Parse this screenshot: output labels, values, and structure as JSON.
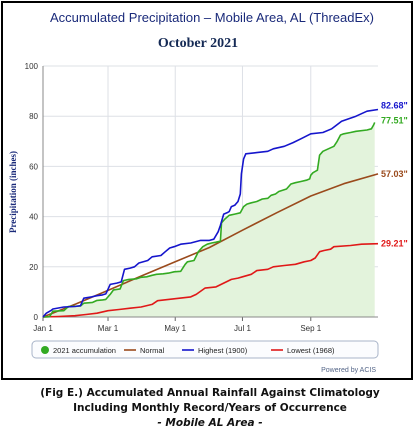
{
  "chart_data": {
    "type": "line",
    "title": "Accumulated Precipitation – Mobile Area, AL (ThreadEx)",
    "subtitle": "October 2021",
    "ylabel": "Precipitation (inches)",
    "ylim": [
      0,
      100
    ],
    "yticks": [
      "0",
      "20",
      "40",
      "60",
      "80",
      "100"
    ],
    "xlim": [
      1,
      305
    ],
    "xticks": [
      {
        "day": 1,
        "label": "Jan 1"
      },
      {
        "day": 60,
        "label": "Mar 1"
      },
      {
        "day": 121,
        "label": "May 1"
      },
      {
        "day": 182,
        "label": "Jul 1"
      },
      {
        "day": 244,
        "label": "Sep 1"
      }
    ],
    "grid": true,
    "legend_position": "bottom",
    "series": [
      {
        "name": "2021 accumulation",
        "kind": "area",
        "color": "#33aa22",
        "fill": "#e3f3dc",
        "end_label": "77.51\"",
        "points": [
          [
            1,
            0
          ],
          [
            7,
            0.1
          ],
          [
            10,
            2.3
          ],
          [
            20,
            2.5
          ],
          [
            24,
            4.2
          ],
          [
            35,
            4.4
          ],
          [
            38,
            5.5
          ],
          [
            46,
            5.8
          ],
          [
            50,
            6.6
          ],
          [
            55,
            6.8
          ],
          [
            58,
            7.0
          ],
          [
            62,
            9.0
          ],
          [
            65,
            10.8
          ],
          [
            71,
            11.2
          ],
          [
            74,
            14.5
          ],
          [
            79,
            15.0
          ],
          [
            86,
            15.2
          ],
          [
            90,
            15.8
          ],
          [
            95,
            16.0
          ],
          [
            100,
            16.6
          ],
          [
            104,
            17.0
          ],
          [
            110,
            17.2
          ],
          [
            115,
            17.5
          ],
          [
            120,
            18.0
          ],
          [
            126,
            18.2
          ],
          [
            130,
            21.0
          ],
          [
            132,
            22.0
          ],
          [
            138,
            22.5
          ],
          [
            142,
            26.0
          ],
          [
            146,
            28.0
          ],
          [
            150,
            29.0
          ],
          [
            154,
            29.5
          ],
          [
            158,
            29.8
          ],
          [
            162,
            30.2
          ],
          [
            163,
            37.5
          ],
          [
            166,
            39.0
          ],
          [
            170,
            40.5
          ],
          [
            175,
            41.0
          ],
          [
            180,
            41.5
          ],
          [
            183,
            44.0
          ],
          [
            186,
            45.0
          ],
          [
            190,
            45.5
          ],
          [
            195,
            46.0
          ],
          [
            200,
            47.0
          ],
          [
            205,
            47.3
          ],
          [
            208,
            48.5
          ],
          [
            212,
            49.0
          ],
          [
            215,
            50.0
          ],
          [
            222,
            51.0
          ],
          [
            226,
            53.0
          ],
          [
            230,
            53.5
          ],
          [
            235,
            54.0
          ],
          [
            240,
            54.5
          ],
          [
            243,
            55.0
          ],
          [
            244,
            56.5
          ],
          [
            246,
            57.5
          ],
          [
            250,
            58.5
          ],
          [
            252,
            64.5
          ],
          [
            255,
            66.0
          ],
          [
            260,
            67.0
          ],
          [
            265,
            68.0
          ],
          [
            268,
            70.0
          ],
          [
            271,
            72.5
          ],
          [
            274,
            73.0
          ],
          [
            280,
            73.5
          ],
          [
            285,
            74.0
          ],
          [
            295,
            74.5
          ],
          [
            299,
            75.0
          ],
          [
            301,
            76.5
          ],
          [
            302,
            77.51
          ]
        ]
      },
      {
        "name": "Normal",
        "kind": "line",
        "color": "#9a4a1c",
        "end_label": "57.03\"",
        "points": [
          [
            1,
            0
          ],
          [
            31,
            5.2
          ],
          [
            60,
            10.6
          ],
          [
            91,
            16.5
          ],
          [
            121,
            22.0
          ],
          [
            152,
            27.7
          ],
          [
            182,
            34.6
          ],
          [
            213,
            41.5
          ],
          [
            244,
            48.2
          ],
          [
            274,
            53.1
          ],
          [
            305,
            57.03
          ]
        ]
      },
      {
        "name": "Highest (1900)",
        "kind": "line",
        "color": "#1515cc",
        "end_label": "82.68\"",
        "points": [
          [
            1,
            0
          ],
          [
            4,
            1.5
          ],
          [
            8,
            2.5
          ],
          [
            10,
            3.2
          ],
          [
            20,
            4.0
          ],
          [
            30,
            4.2
          ],
          [
            35,
            4.5
          ],
          [
            38,
            7.5
          ],
          [
            45,
            8.0
          ],
          [
            50,
            8.5
          ],
          [
            55,
            8.8
          ],
          [
            58,
            9.2
          ],
          [
            62,
            13.0
          ],
          [
            68,
            13.5
          ],
          [
            72,
            14.0
          ],
          [
            75,
            19.0
          ],
          [
            80,
            19.5
          ],
          [
            84,
            20.0
          ],
          [
            88,
            21.5
          ],
          [
            96,
            22.5
          ],
          [
            100,
            24.0
          ],
          [
            108,
            24.5
          ],
          [
            112,
            26.0
          ],
          [
            116,
            27.5
          ],
          [
            120,
            28.0
          ],
          [
            126,
            29.0
          ],
          [
            135,
            29.5
          ],
          [
            144,
            30.5
          ],
          [
            152,
            30.5
          ],
          [
            156,
            31.0
          ],
          [
            160,
            34.0
          ],
          [
            162,
            36.5
          ],
          [
            165,
            41.0
          ],
          [
            168,
            41.5
          ],
          [
            170,
            42.0
          ],
          [
            172,
            44.0
          ],
          [
            175,
            44.5
          ],
          [
            178,
            46.0
          ],
          [
            180,
            49.0
          ],
          [
            181,
            57.0
          ],
          [
            183,
            63.0
          ],
          [
            185,
            65.0
          ],
          [
            195,
            65.5
          ],
          [
            205,
            66.0
          ],
          [
            210,
            67.0
          ],
          [
            220,
            68.0
          ],
          [
            228,
            69.5
          ],
          [
            235,
            71.0
          ],
          [
            244,
            73.0
          ],
          [
            255,
            73.5
          ],
          [
            263,
            75.0
          ],
          [
            272,
            78.0
          ],
          [
            285,
            80.0
          ],
          [
            290,
            81.0
          ],
          [
            295,
            82.0
          ],
          [
            305,
            82.68
          ]
        ]
      },
      {
        "name": "Lowest (1968)",
        "kind": "line",
        "color": "#e01818",
        "end_label": "29.21\"",
        "points": [
          [
            1,
            0
          ],
          [
            15,
            0.2
          ],
          [
            30,
            0.5
          ],
          [
            40,
            1.0
          ],
          [
            50,
            1.5
          ],
          [
            60,
            2.5
          ],
          [
            70,
            3.0
          ],
          [
            80,
            3.5
          ],
          [
            90,
            4.0
          ],
          [
            100,
            5.0
          ],
          [
            105,
            6.5
          ],
          [
            115,
            7.0
          ],
          [
            125,
            7.5
          ],
          [
            135,
            8.0
          ],
          [
            140,
            9.0
          ],
          [
            148,
            11.5
          ],
          [
            158,
            12.0
          ],
          [
            165,
            13.5
          ],
          [
            172,
            15.0
          ],
          [
            178,
            15.5
          ],
          [
            182,
            16.0
          ],
          [
            190,
            17.0
          ],
          [
            195,
            18.5
          ],
          [
            205,
            19.0
          ],
          [
            210,
            20.0
          ],
          [
            220,
            20.5
          ],
          [
            230,
            21.0
          ],
          [
            238,
            22.0
          ],
          [
            244,
            22.5
          ],
          [
            248,
            23.5
          ],
          [
            252,
            26.0
          ],
          [
            256,
            26.5
          ],
          [
            262,
            27.0
          ],
          [
            265,
            28.0
          ],
          [
            280,
            28.5
          ],
          [
            290,
            29.0
          ],
          [
            305,
            29.21
          ]
        ]
      }
    ]
  },
  "credit": "Powered by ACIS",
  "caption": {
    "line1": "(Fig E.) Accumulated Annual Rainfall Against  Climatology",
    "line2": "Including Monthly Record/Years of Occurrence",
    "line3": "- Mobile AL Area -"
  }
}
